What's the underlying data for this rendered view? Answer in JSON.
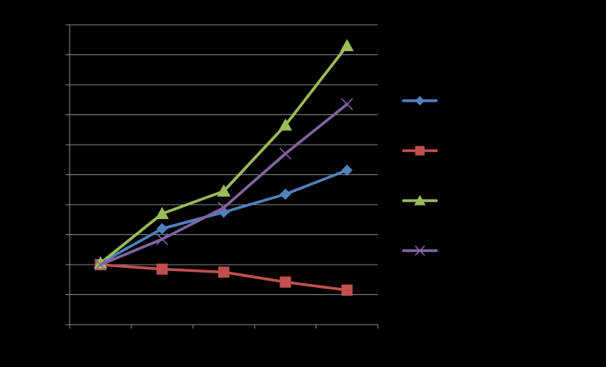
{
  "chart_data": {
    "type": "line",
    "x": [
      1,
      2,
      3,
      4,
      5
    ],
    "xlim": [
      0.5,
      5.5
    ],
    "ylim": [
      0,
      10
    ],
    "ytick_count": 11,
    "xtick_count": 6,
    "grid": true,
    "legend": "right",
    "series": [
      {
        "values": [
          2.05,
          3.2,
          3.75,
          4.35,
          5.15
        ],
        "color": "#4F81BD",
        "marker": "diamond"
      },
      {
        "values": [
          2.0,
          1.85,
          1.75,
          1.42,
          1.15
        ],
        "color": "#C0504D",
        "marker": "square"
      },
      {
        "values": [
          2.05,
          3.7,
          4.45,
          6.65,
          9.3
        ],
        "color": "#9BBB59",
        "marker": "triangle"
      },
      {
        "values": [
          2.0,
          2.85,
          3.9,
          5.7,
          7.35
        ],
        "color": "#8064A2",
        "marker": "x"
      }
    ],
    "colors": {
      "background": "#000000",
      "grid": "#7F7F7F",
      "axis": "#868686"
    }
  }
}
